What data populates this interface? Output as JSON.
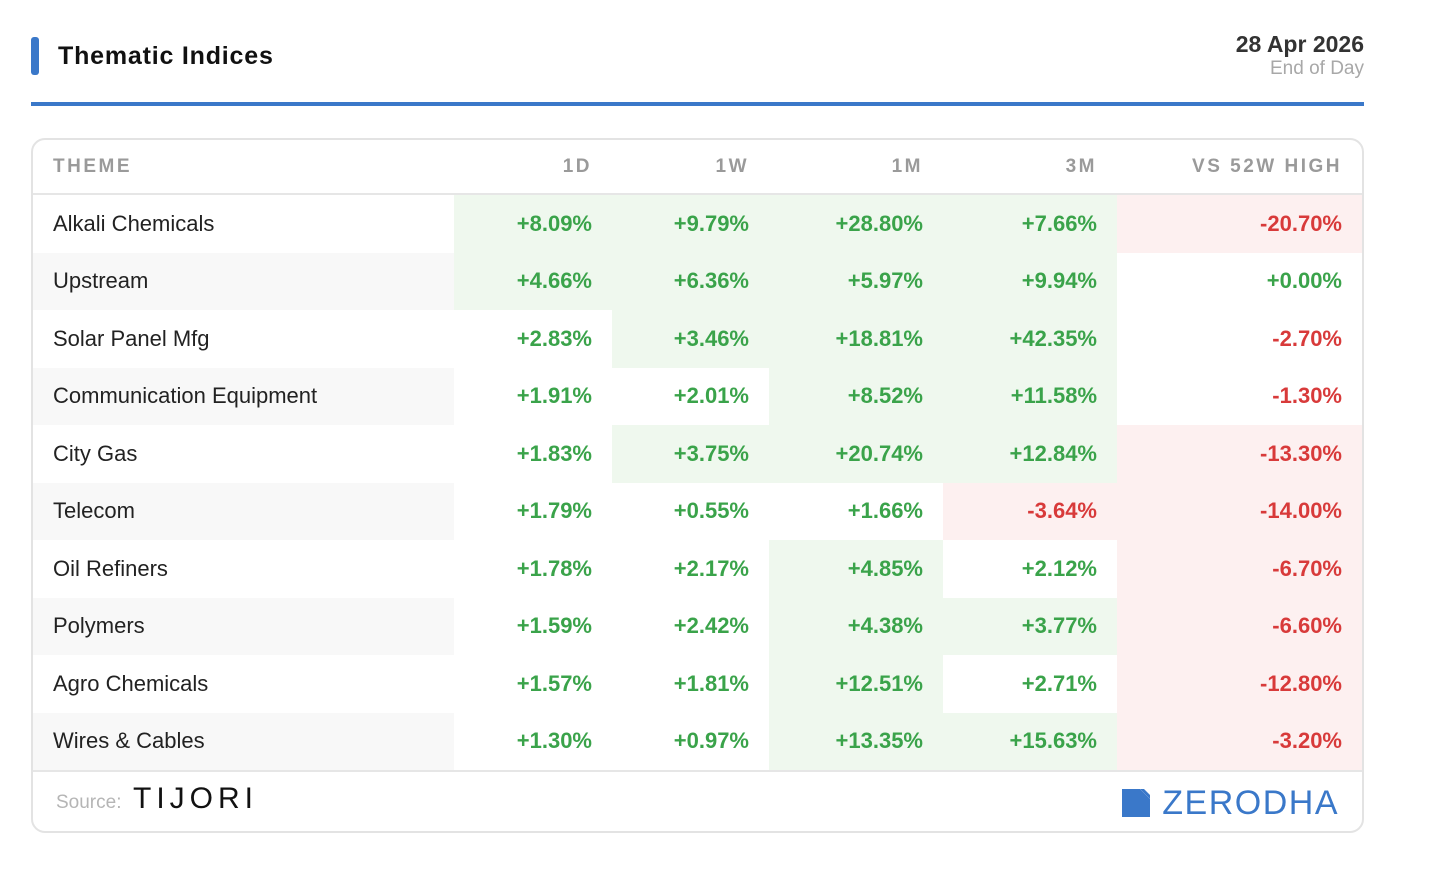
{
  "header": {
    "title": "Thematic Indices",
    "date": "28 Apr 2026",
    "subtitle": "End of Day"
  },
  "colors": {
    "accent": "#3a78c9",
    "positive": "#3aa34a",
    "negative": "#d83a3a",
    "positive_bg": "#eff8ee",
    "negative_bg": "#fdf0f0"
  },
  "table": {
    "columns": [
      "THEME",
      "1D",
      "1W",
      "1M",
      "3M",
      "VS 52W HIGH"
    ],
    "rows": [
      {
        "theme": "Alkali Chemicals",
        "values": [
          "+8.09%",
          "+9.79%",
          "+28.80%",
          "+7.66%",
          "-20.70%"
        ],
        "highlight": [
          true,
          true,
          true,
          true,
          true
        ]
      },
      {
        "theme": "Upstream",
        "values": [
          "+4.66%",
          "+6.36%",
          "+5.97%",
          "+9.94%",
          "+0.00%"
        ],
        "highlight": [
          true,
          true,
          true,
          true,
          false
        ]
      },
      {
        "theme": "Solar Panel Mfg",
        "values": [
          "+2.83%",
          "+3.46%",
          "+18.81%",
          "+42.35%",
          "-2.70%"
        ],
        "highlight": [
          false,
          true,
          true,
          true,
          false
        ]
      },
      {
        "theme": "Communication Equipment",
        "values": [
          "+1.91%",
          "+2.01%",
          "+8.52%",
          "+11.58%",
          "-1.30%"
        ],
        "highlight": [
          false,
          false,
          true,
          true,
          false
        ]
      },
      {
        "theme": "City Gas",
        "values": [
          "+1.83%",
          "+3.75%",
          "+20.74%",
          "+12.84%",
          "-13.30%"
        ],
        "highlight": [
          false,
          true,
          true,
          true,
          true
        ]
      },
      {
        "theme": "Telecom",
        "values": [
          "+1.79%",
          "+0.55%",
          "+1.66%",
          "-3.64%",
          "-14.00%"
        ],
        "highlight": [
          false,
          false,
          false,
          true,
          true
        ]
      },
      {
        "theme": "Oil Refiners",
        "values": [
          "+1.78%",
          "+2.17%",
          "+4.85%",
          "+2.12%",
          "-6.70%"
        ],
        "highlight": [
          false,
          false,
          true,
          false,
          true
        ]
      },
      {
        "theme": "Polymers",
        "values": [
          "+1.59%",
          "+2.42%",
          "+4.38%",
          "+3.77%",
          "-6.60%"
        ],
        "highlight": [
          false,
          false,
          true,
          true,
          true
        ]
      },
      {
        "theme": "Agro Chemicals",
        "values": [
          "+1.57%",
          "+1.81%",
          "+12.51%",
          "+2.71%",
          "-12.80%"
        ],
        "highlight": [
          false,
          false,
          true,
          false,
          true
        ]
      },
      {
        "theme": "Wires & Cables",
        "values": [
          "+1.30%",
          "+0.97%",
          "+13.35%",
          "+15.63%",
          "-3.20%"
        ],
        "highlight": [
          false,
          false,
          true,
          true,
          true
        ]
      }
    ]
  },
  "footer": {
    "source_label": "Source:",
    "source_name": "TIJORI",
    "brand": "ZERODHA",
    "brand_icon": "zerodha-logo-icon"
  }
}
